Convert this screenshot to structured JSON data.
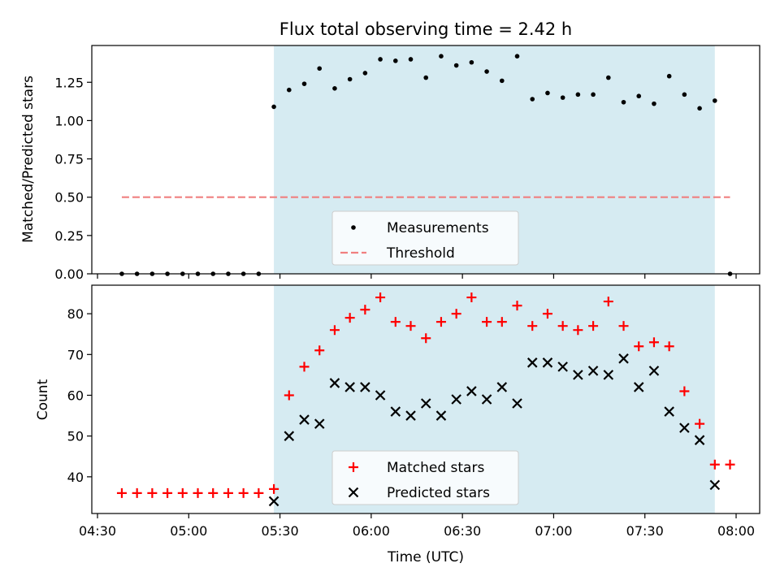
{
  "chart_data": [
    {
      "type": "scatter",
      "title": "Flux total observing time = 2.42 h",
      "xlabel": "",
      "ylabel": "Matched/Predicted stars",
      "ylim": [
        0.0,
        1.49
      ],
      "yticks": [
        0.0,
        0.25,
        0.5,
        0.75,
        1.0,
        1.25
      ],
      "ytick_labels": [
        "0.00",
        "0.25",
        "0.50",
        "0.75",
        "1.00",
        "1.25"
      ],
      "shaded_span": [
        "05:28",
        "07:53"
      ],
      "threshold": {
        "name": "Threshold",
        "y": 0.5,
        "x_range": [
          "04:38",
          "07:58"
        ],
        "color": "#f08080"
      },
      "series": [
        {
          "name": "Measurements",
          "color": "#000000",
          "marker": "dot",
          "x": [
            "04:38",
            "04:43",
            "04:48",
            "04:53",
            "04:58",
            "05:03",
            "05:08",
            "05:13",
            "05:18",
            "05:23",
            "05:28",
            "05:33",
            "05:38",
            "05:43",
            "05:48",
            "05:53",
            "05:58",
            "06:03",
            "06:08",
            "06:13",
            "06:18",
            "06:23",
            "06:28",
            "06:33",
            "06:38",
            "06:43",
            "06:48",
            "06:53",
            "06:58",
            "07:03",
            "07:08",
            "07:13",
            "07:18",
            "07:23",
            "07:28",
            "07:33",
            "07:38",
            "07:43",
            "07:48",
            "07:53",
            "07:58"
          ],
          "y": [
            0,
            0,
            0,
            0,
            0,
            0,
            0,
            0,
            0,
            0,
            1.09,
            1.2,
            1.24,
            1.34,
            1.21,
            1.27,
            1.31,
            1.4,
            1.39,
            1.4,
            1.28,
            1.42,
            1.36,
            1.38,
            1.32,
            1.26,
            1.42,
            1.14,
            1.18,
            1.15,
            1.17,
            1.17,
            1.28,
            1.12,
            1.16,
            1.11,
            1.29,
            1.17,
            1.08,
            1.13,
            0
          ]
        }
      ],
      "legend": [
        "Measurements",
        "Threshold"
      ],
      "legend_position": "lower-center"
    },
    {
      "type": "scatter",
      "title": "",
      "xlabel": "Time (UTC)",
      "ylabel": "Count",
      "ylim": [
        31,
        87
      ],
      "yticks": [
        40,
        50,
        60,
        70,
        80
      ],
      "ytick_labels": [
        "40",
        "50",
        "60",
        "70",
        "80"
      ],
      "xticks": [
        "04:30",
        "05:00",
        "05:30",
        "06:00",
        "06:30",
        "07:00",
        "07:30",
        "08:00"
      ],
      "shaded_span": [
        "05:28",
        "07:53"
      ],
      "series": [
        {
          "name": "Matched stars",
          "color": "#ff0000",
          "marker": "plus",
          "x": [
            "04:38",
            "04:43",
            "04:48",
            "04:53",
            "04:58",
            "05:03",
            "05:08",
            "05:13",
            "05:18",
            "05:23",
            "05:28",
            "05:33",
            "05:38",
            "05:43",
            "05:48",
            "05:53",
            "05:58",
            "06:03",
            "06:08",
            "06:13",
            "06:18",
            "06:23",
            "06:28",
            "06:33",
            "06:38",
            "06:43",
            "06:48",
            "06:53",
            "06:58",
            "07:03",
            "07:08",
            "07:13",
            "07:18",
            "07:23",
            "07:28",
            "07:33",
            "07:38",
            "07:43",
            "07:48",
            "07:53",
            "07:58"
          ],
          "y": [
            36,
            36,
            36,
            36,
            36,
            36,
            36,
            36,
            36,
            36,
            37,
            60,
            67,
            71,
            76,
            79,
            81,
            84,
            78,
            77,
            74,
            78,
            80,
            84,
            78,
            78,
            82,
            77,
            80,
            77,
            76,
            77,
            83,
            77,
            72,
            73,
            72,
            61,
            53,
            43,
            43
          ]
        },
        {
          "name": "Predicted stars",
          "color": "#000000",
          "marker": "x",
          "x": [
            "05:28",
            "05:33",
            "05:38",
            "05:43",
            "05:48",
            "05:53",
            "05:58",
            "06:03",
            "06:08",
            "06:13",
            "06:18",
            "06:23",
            "06:28",
            "06:33",
            "06:38",
            "06:43",
            "06:48",
            "06:53",
            "06:58",
            "07:03",
            "07:08",
            "07:13",
            "07:18",
            "07:23",
            "07:28",
            "07:33",
            "07:38",
            "07:43",
            "07:48",
            "07:53"
          ],
          "y": [
            34,
            50,
            54,
            53,
            63,
            62,
            62,
            60,
            56,
            55,
            58,
            55,
            59,
            61,
            59,
            62,
            58,
            68,
            68,
            67,
            65,
            66,
            65,
            69,
            62,
            66,
            56,
            52,
            49,
            38
          ]
        }
      ],
      "legend": [
        "Matched stars",
        "Predicted stars"
      ],
      "legend_position": "lower-center"
    }
  ]
}
